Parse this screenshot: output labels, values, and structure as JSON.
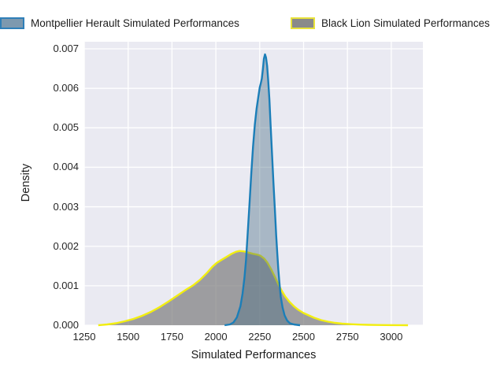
{
  "legend": {
    "items": [
      {
        "label": "Montpellier Herault Simulated Performances",
        "swatch_fill": "#7d99af",
        "swatch_border": "#2f7fb8"
      },
      {
        "label": "Black Lion Simulated Performances",
        "swatch_fill": "#8a8a8a",
        "swatch_border": "#e8e23a"
      }
    ]
  },
  "colors": {
    "plot_background": "#eaeaf2",
    "gridline": "#ffffff",
    "montpellier_line": "#1b7eb8",
    "montpellier_fill": "rgba(70,107,131,0.40)",
    "black_lion_line": "#f2ee10",
    "black_lion_fill": "rgba(128,128,128,0.72)"
  },
  "chart_data": {
    "type": "area",
    "subtype": "kde-density",
    "title": "",
    "xlabel": "Simulated Performances",
    "ylabel": "Density",
    "xlim": [
      1250,
      3180
    ],
    "ylim": [
      0,
      0.00718
    ],
    "x_ticks": [
      1250,
      1500,
      1750,
      2000,
      2250,
      2500,
      2750,
      3000
    ],
    "y_ticks": [
      0.0,
      0.001,
      0.002,
      0.003,
      0.004,
      0.005,
      0.006,
      0.007
    ],
    "grid": true,
    "legend_position": "top-outside",
    "series": [
      {
        "name": "Black Lion Simulated Performances",
        "peak_x": 2130,
        "peak_density": 0.00188,
        "points": [
          [
            1330,
            0
          ],
          [
            1380,
            2e-05
          ],
          [
            1430,
            5e-05
          ],
          [
            1480,
            0.0001
          ],
          [
            1530,
            0.00016
          ],
          [
            1580,
            0.00024
          ],
          [
            1630,
            0.00034
          ],
          [
            1680,
            0.00046
          ],
          [
            1730,
            0.0006
          ],
          [
            1780,
            0.00075
          ],
          [
            1830,
            0.0009
          ],
          [
            1870,
            0.00101
          ],
          [
            1910,
            0.00115
          ],
          [
            1950,
            0.00133
          ],
          [
            1980,
            0.00148
          ],
          [
            2005,
            0.00158
          ],
          [
            2030,
            0.00165
          ],
          [
            2060,
            0.00173
          ],
          [
            2090,
            0.00181
          ],
          [
            2115,
            0.00186
          ],
          [
            2135,
            0.00188
          ],
          [
            2160,
            0.00187
          ],
          [
            2185,
            0.00184
          ],
          [
            2210,
            0.00181
          ],
          [
            2235,
            0.00179
          ],
          [
            2255,
            0.00176
          ],
          [
            2275,
            0.00169
          ],
          [
            2295,
            0.00158
          ],
          [
            2315,
            0.00142
          ],
          [
            2335,
            0.00124
          ],
          [
            2355,
            0.00105
          ],
          [
            2375,
            0.00088
          ],
          [
            2395,
            0.00073
          ],
          [
            2420,
            0.00059
          ],
          [
            2445,
            0.00048
          ],
          [
            2470,
            0.00039
          ],
          [
            2500,
            0.00031
          ],
          [
            2530,
            0.00025
          ],
          [
            2560,
            0.00019
          ],
          [
            2600,
            0.00013
          ],
          [
            2640,
            9e-05
          ],
          [
            2680,
            6e-05
          ],
          [
            2720,
            4e-05
          ],
          [
            2770,
            2.5e-05
          ],
          [
            2820,
            1.5e-05
          ],
          [
            2870,
            1e-05
          ],
          [
            2920,
            6e-06
          ],
          [
            2970,
            3e-06
          ],
          [
            3030,
            1e-06
          ],
          [
            3095,
            0
          ]
        ]
      },
      {
        "name": "Montpellier Herault Simulated Performances",
        "peak_x": 2280,
        "peak_density": 0.00686,
        "points": [
          [
            2050,
            0
          ],
          [
            2080,
            2e-05
          ],
          [
            2100,
            7e-05
          ],
          [
            2120,
            0.0002
          ],
          [
            2140,
            0.00048
          ],
          [
            2152,
            0.0008
          ],
          [
            2163,
            0.0012
          ],
          [
            2172,
            0.00165
          ],
          [
            2182,
            0.00235
          ],
          [
            2192,
            0.0031
          ],
          [
            2202,
            0.00385
          ],
          [
            2212,
            0.00452
          ],
          [
            2222,
            0.00508
          ],
          [
            2232,
            0.00548
          ],
          [
            2242,
            0.00578
          ],
          [
            2250,
            0.00602
          ],
          [
            2256,
            0.00612
          ],
          [
            2262,
            0.00625
          ],
          [
            2268,
            0.00648
          ],
          [
            2274,
            0.00675
          ],
          [
            2280,
            0.00686
          ],
          [
            2286,
            0.00678
          ],
          [
            2292,
            0.00657
          ],
          [
            2298,
            0.00622
          ],
          [
            2305,
            0.00572
          ],
          [
            2312,
            0.00508
          ],
          [
            2320,
            0.00435
          ],
          [
            2328,
            0.00362
          ],
          [
            2336,
            0.00295
          ],
          [
            2344,
            0.00228
          ],
          [
            2350,
            0.00182
          ],
          [
            2356,
            0.00142
          ],
          [
            2362,
            0.00108
          ],
          [
            2370,
            0.00072
          ],
          [
            2380,
            0.00045
          ],
          [
            2392,
            0.00025
          ],
          [
            2406,
            0.00012
          ],
          [
            2422,
            5e-05
          ],
          [
            2445,
            2e-05
          ],
          [
            2480,
            0
          ]
        ]
      }
    ]
  }
}
